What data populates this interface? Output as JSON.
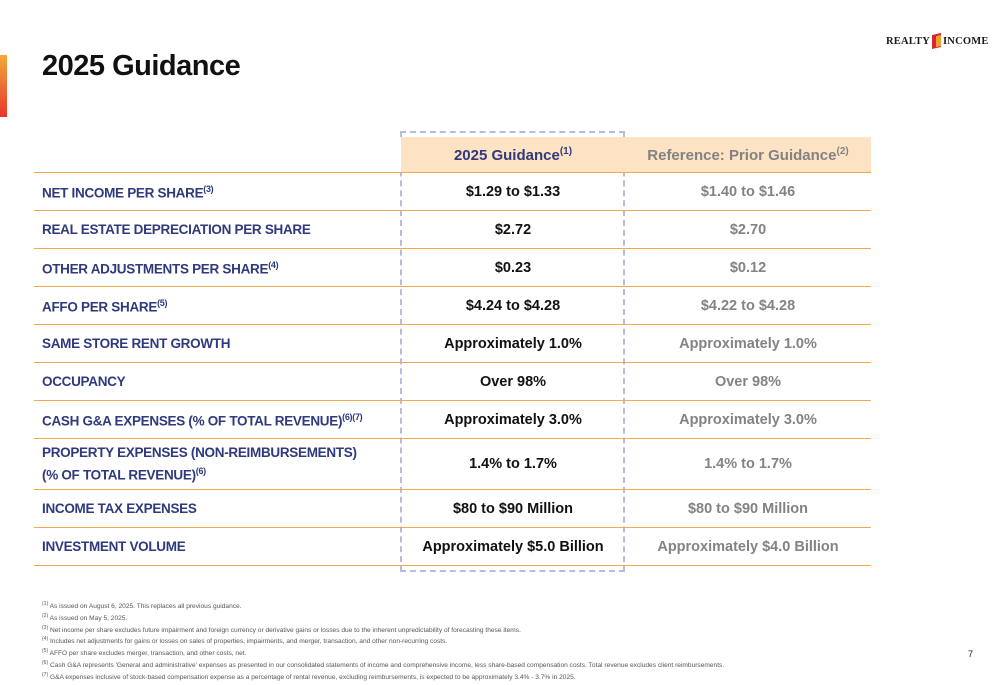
{
  "page": {
    "title": "2025 Guidance",
    "page_number": "7"
  },
  "logo": {
    "left_text": "REALTY",
    "right_text": "INCOME"
  },
  "table": {
    "headers": {
      "guidance": "2025 Guidance",
      "guidance_note": "(1)",
      "prior": "Reference:  Prior Guidance",
      "prior_note": "(2)"
    },
    "rows": [
      {
        "label": "NET INCOME PER SHARE",
        "note": "(3)",
        "guidance": "$1.29 to $1.33",
        "prior": "$1.40 to $1.46"
      },
      {
        "label": "REAL ESTATE DEPRECIATION PER SHARE",
        "note": "",
        "guidance": "$2.72",
        "prior": "$2.70"
      },
      {
        "label": "OTHER ADJUSTMENTS PER SHARE",
        "note": "(4)",
        "guidance": "$0.23",
        "prior": "$0.12"
      },
      {
        "label": "AFFO PER SHARE",
        "note": "(5)",
        "guidance": "$4.24 to $4.28",
        "prior": "$4.22 to $4.28"
      },
      {
        "label": "SAME STORE RENT GROWTH",
        "note": "",
        "guidance": "Approximately 1.0%",
        "prior": "Approximately 1.0%"
      },
      {
        "label": "OCCUPANCY",
        "note": "",
        "guidance": "Over 98%",
        "prior": "Over 98%"
      },
      {
        "label": "CASH G&A EXPENSES (% OF TOTAL REVENUE)",
        "note": "(6)(7)",
        "guidance": "Approximately 3.0%",
        "prior": "Approximately 3.0%"
      },
      {
        "label": "PROPERTY EXPENSES (NON-REIMBURSEMENTS)",
        "label_line2": "(% OF TOTAL REVENUE)",
        "note": "(6)",
        "guidance": "1.4% to 1.7%",
        "prior": "1.4% to 1.7%"
      },
      {
        "label": "INCOME TAX EXPENSES",
        "note": "",
        "guidance": "$80 to $90 Million",
        "prior": "$80 to $90 Million"
      },
      {
        "label": "INVESTMENT VOLUME",
        "note": "",
        "guidance": "Approximately $5.0 Billion",
        "prior": "Approximately $4.0 Billion"
      }
    ]
  },
  "footnotes": [
    {
      "marker": "(1)",
      "text": "As issued on August 6, 2025.  This replaces all previous guidance."
    },
    {
      "marker": "(2)",
      "text": "As issued on May 5, 2025."
    },
    {
      "marker": "(3)",
      "text": "Net income per share excludes future impairment and foreign currency or derivative gains or losses due to the inherent unpredictability of forecasting these items."
    },
    {
      "marker": "(4)",
      "text": "Includes net adjustments for gains or losses on sales of properties, impairments, and merger, transaction, and other non-recurring costs."
    },
    {
      "marker": "(5)",
      "text": "AFFO per share excludes merger, transaction, and other costs, net."
    },
    {
      "marker": "(6)",
      "text": "Cash G&A represents 'General and administrative' expenses as presented in our consolidated statements of income and comprehensive income, less share-based compensation costs. Total revenue excludes client reimbursements."
    },
    {
      "marker": "(7)",
      "text": "G&A expenses inclusive of stock-based compensation expense as a percentage of rental revenue, excluding reimbursements, is expected to be approximately 3.4% - 3.7% in 2025."
    }
  ],
  "colors": {
    "label_blue": "#2f3a7d",
    "header_fill": "#fde3c4",
    "rule_orange": "#f0a94d",
    "prior_gray": "#838383",
    "dashed_outline": "#b5bddb",
    "accent_orange": "#f2a93b",
    "accent_red": "#e8352b"
  }
}
